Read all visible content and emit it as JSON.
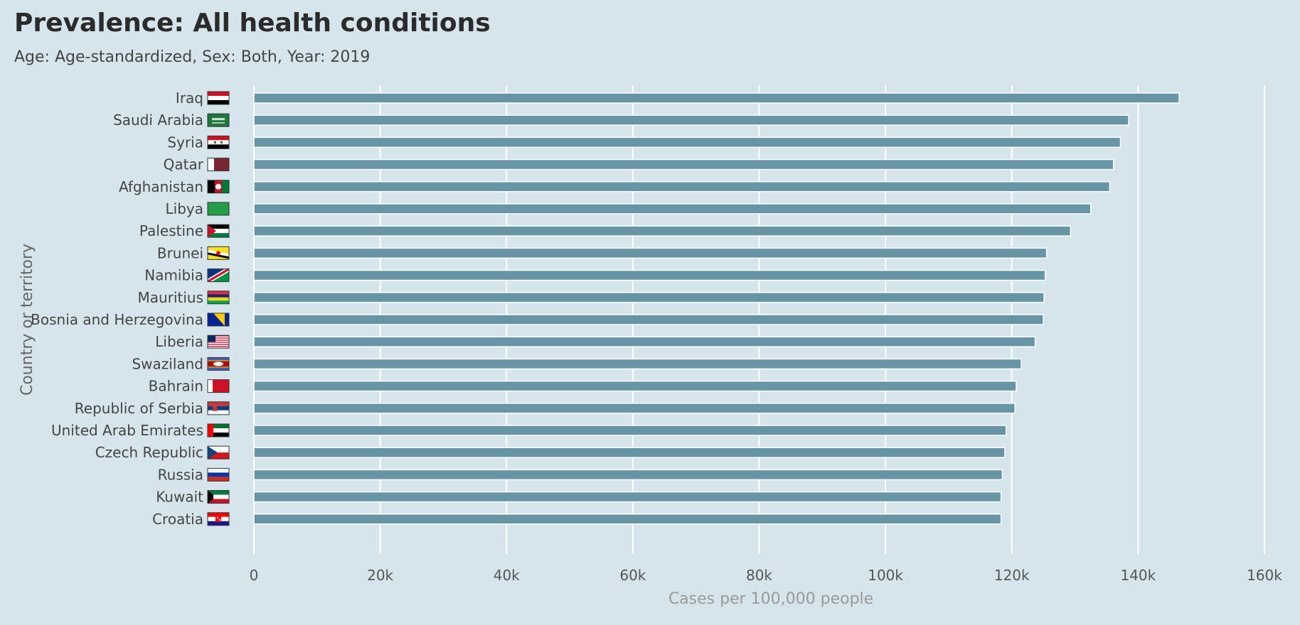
{
  "chart_data": {
    "type": "bar",
    "orientation": "horizontal",
    "title": "Prevalence: All health conditions",
    "subtitle": "Age: Age-standardized, Sex: Both, Year: 2019",
    "xlabel": "Cases per 100,000 people",
    "ylabel": "Country or territory",
    "xlim": [
      0,
      160000
    ],
    "xticks": [
      0,
      20000,
      40000,
      60000,
      80000,
      100000,
      120000,
      140000,
      160000
    ],
    "xtick_labels": [
      "0",
      "20k",
      "40k",
      "60k",
      "80k",
      "100k",
      "120k",
      "140k",
      "160k"
    ],
    "grid": true,
    "categories": [
      "Iraq",
      "Saudi Arabia",
      "Syria",
      "Qatar",
      "Afghanistan",
      "Libya",
      "Palestine",
      "Brunei",
      "Namibia",
      "Mauritius",
      "Bosnia and Herzegovina",
      "Liberia",
      "Swaziland",
      "Bahrain",
      "Republic of Serbia",
      "United Arab Emirates",
      "Czech Republic",
      "Russia",
      "Kuwait",
      "Croatia"
    ],
    "values": [
      146500,
      138500,
      137200,
      136100,
      135500,
      132500,
      129300,
      125500,
      125300,
      125100,
      125000,
      123700,
      121500,
      120700,
      120500,
      119100,
      118900,
      118500,
      118300,
      118300
    ],
    "bar_color": "#6795a5",
    "background_color": "#d6e5ec",
    "flag_icons": [
      "iraq-flag-icon",
      "saudi-arabia-flag-icon",
      "syria-flag-icon",
      "qatar-flag-icon",
      "afghanistan-flag-icon",
      "libya-flag-icon",
      "palestine-flag-icon",
      "brunei-flag-icon",
      "namibia-flag-icon",
      "mauritius-flag-icon",
      "bosnia-flag-icon",
      "liberia-flag-icon",
      "swaziland-flag-icon",
      "bahrain-flag-icon",
      "serbia-flag-icon",
      "uae-flag-icon",
      "czech-flag-icon",
      "russia-flag-icon",
      "kuwait-flag-icon",
      "croatia-flag-icon"
    ]
  }
}
